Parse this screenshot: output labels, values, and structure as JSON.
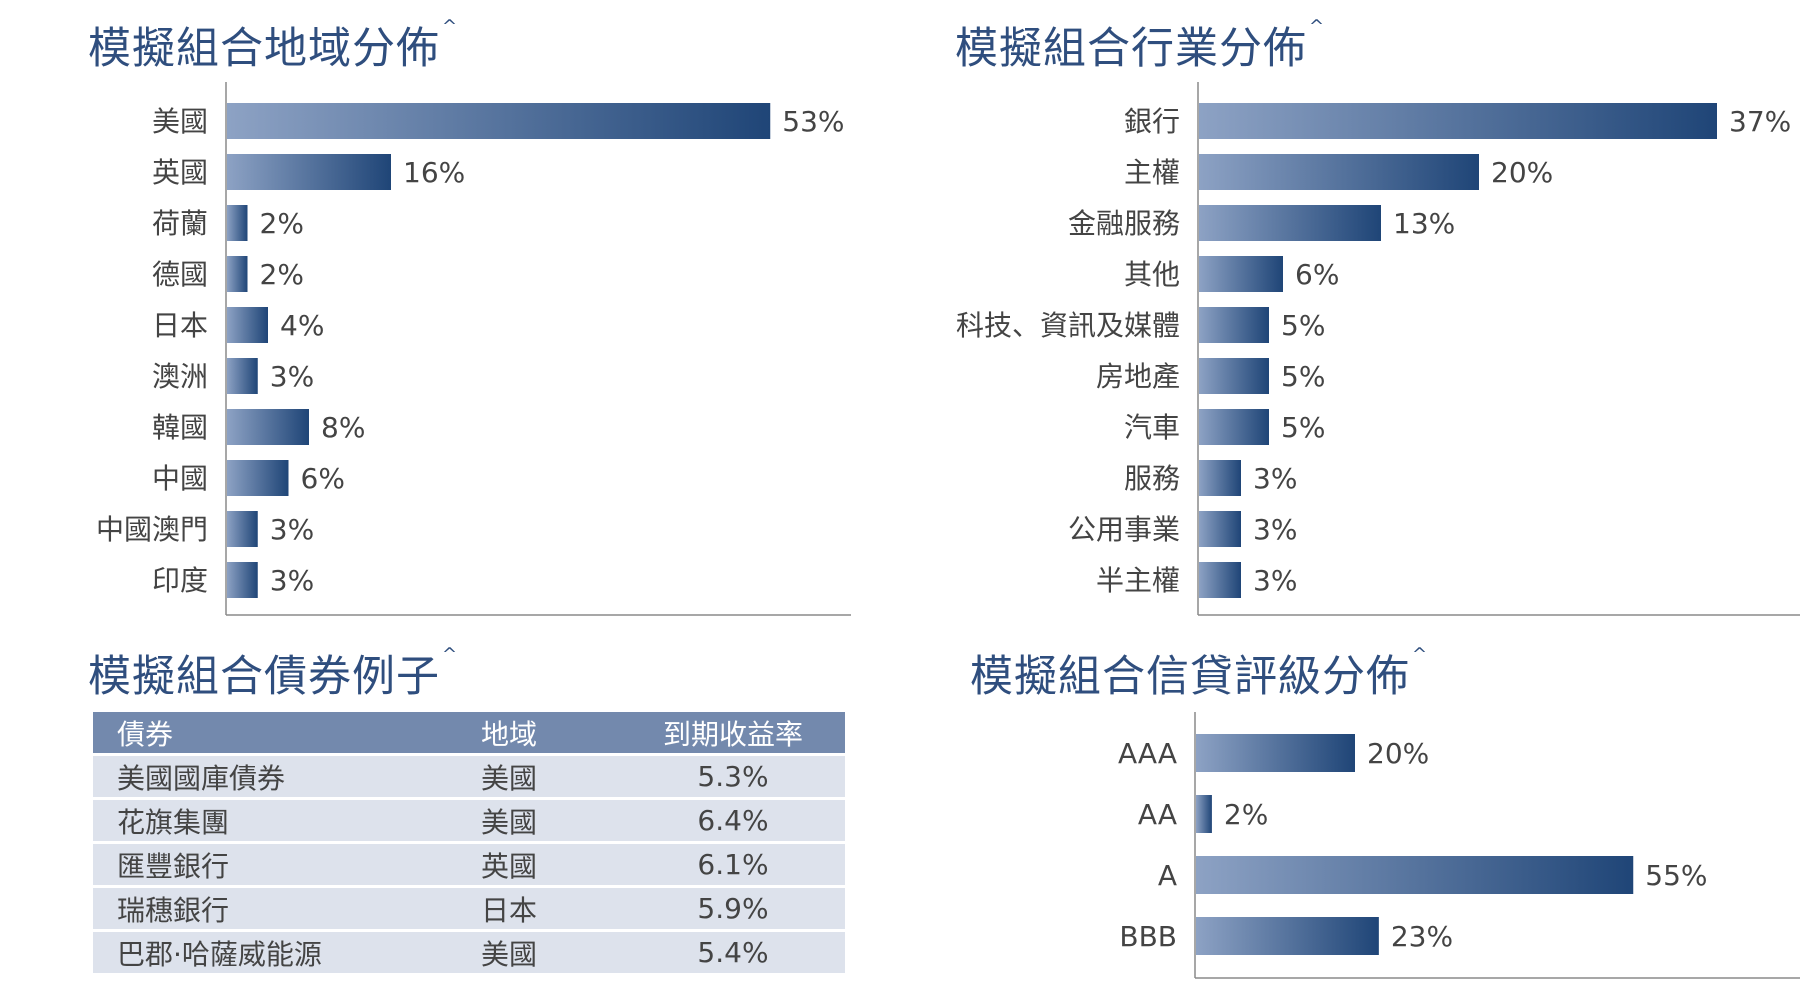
{
  "colors": {
    "title": "#2f4e7e",
    "bar_dark": "#1f4577",
    "bar_light": "#8da2c4",
    "table_header": "#7389ad",
    "table_row": "#dde2ec"
  },
  "region": {
    "title": "模擬組合地域分佈",
    "mark": "^"
  },
  "sector": {
    "title": "模擬組合行業分佈",
    "mark": "^"
  },
  "bonds": {
    "title": "模擬組合債券例子",
    "mark": "^",
    "headers": [
      "債券",
      "地域",
      "到期收益率"
    ],
    "rows": [
      [
        "美國國庫債券",
        "美國",
        "5.3%"
      ],
      [
        "花旗集團",
        "美國",
        "6.4%"
      ],
      [
        "匯豐銀行",
        "英國",
        "6.1%"
      ],
      [
        "瑞穗銀行",
        "日本",
        "5.9%"
      ],
      [
        "巴郡·哈薩威能源",
        "美國",
        "5.4%"
      ]
    ]
  },
  "rating": {
    "title": "模擬組合信貸評級分佈",
    "mark": "^"
  },
  "chart_data": [
    {
      "type": "bar",
      "orientation": "horizontal",
      "categories": [
        "美國",
        "英國",
        "荷蘭",
        "德國",
        "日本",
        "澳洲",
        "韓國",
        "中國",
        "中國澳門",
        "印度"
      ],
      "values": [
        53,
        16,
        2,
        2,
        4,
        3,
        8,
        6,
        3,
        3
      ],
      "labels": [
        "53%",
        "16%",
        "2%",
        "2%",
        "4%",
        "3%",
        "8%",
        "6%",
        "3%",
        "3%"
      ]
    },
    {
      "type": "bar",
      "orientation": "horizontal",
      "categories": [
        "銀行",
        "主權",
        "金融服務",
        "其他",
        "科技、資訊及媒體",
        "房地產",
        "汽車",
        "服務",
        "公用事業",
        "半主權"
      ],
      "values": [
        37,
        20,
        13,
        6,
        5,
        5,
        5,
        3,
        3,
        3
      ],
      "labels": [
        "37%",
        "20%",
        "13%",
        "6%",
        "5%",
        "5%",
        "5%",
        "3%",
        "3%",
        "3%"
      ]
    },
    {
      "type": "bar",
      "orientation": "horizontal",
      "categories": [
        "AAA",
        "AA",
        "A",
        "BBB"
      ],
      "values": [
        20,
        2,
        55,
        23
      ],
      "labels": [
        "20%",
        "2%",
        "55%",
        "23%"
      ]
    }
  ]
}
